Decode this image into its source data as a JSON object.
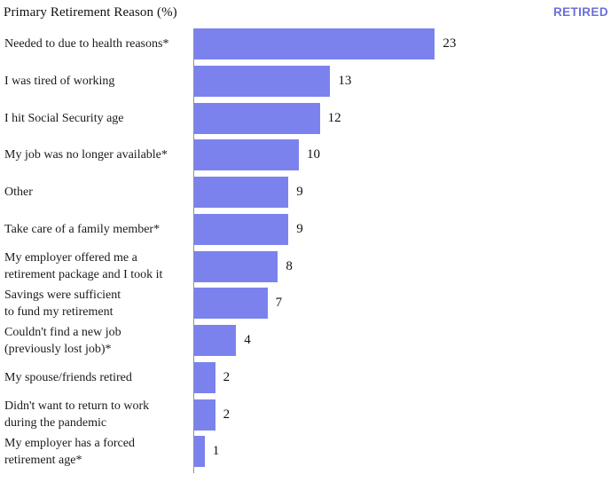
{
  "header": {
    "title": "Primary Retirement Reason (%)",
    "badge": "RETIRED"
  },
  "colors": {
    "bar": "#7b82ee",
    "badge_text": "#6a6fd9",
    "axis_line": "#8f8f8f",
    "label_text": "#1a1a1a"
  },
  "chart_data": {
    "type": "bar",
    "orientation": "horizontal",
    "title": "Primary Retirement Reason (%)",
    "legend": "RETIRED",
    "xlabel": "",
    "ylabel": "",
    "xlim": [
      0,
      25
    ],
    "grid": false,
    "categories": [
      "Needed to due to health reasons*",
      "I was tired of working",
      "I hit Social Security age",
      "My job was no longer available*",
      "Other",
      "Take care of a family member*",
      "My employer offered me a\nretirement package and I took it",
      "Savings were sufficient\nto fund my retirement",
      "Couldn't find a new job\n(previously lost job)*",
      "My spouse/friends retired",
      "Didn't want to return to work\nduring the pandemic",
      "My employer has a forced\nretirement age*"
    ],
    "values": [
      23,
      13,
      12,
      10,
      9,
      9,
      8,
      7,
      4,
      2,
      2,
      1
    ]
  }
}
